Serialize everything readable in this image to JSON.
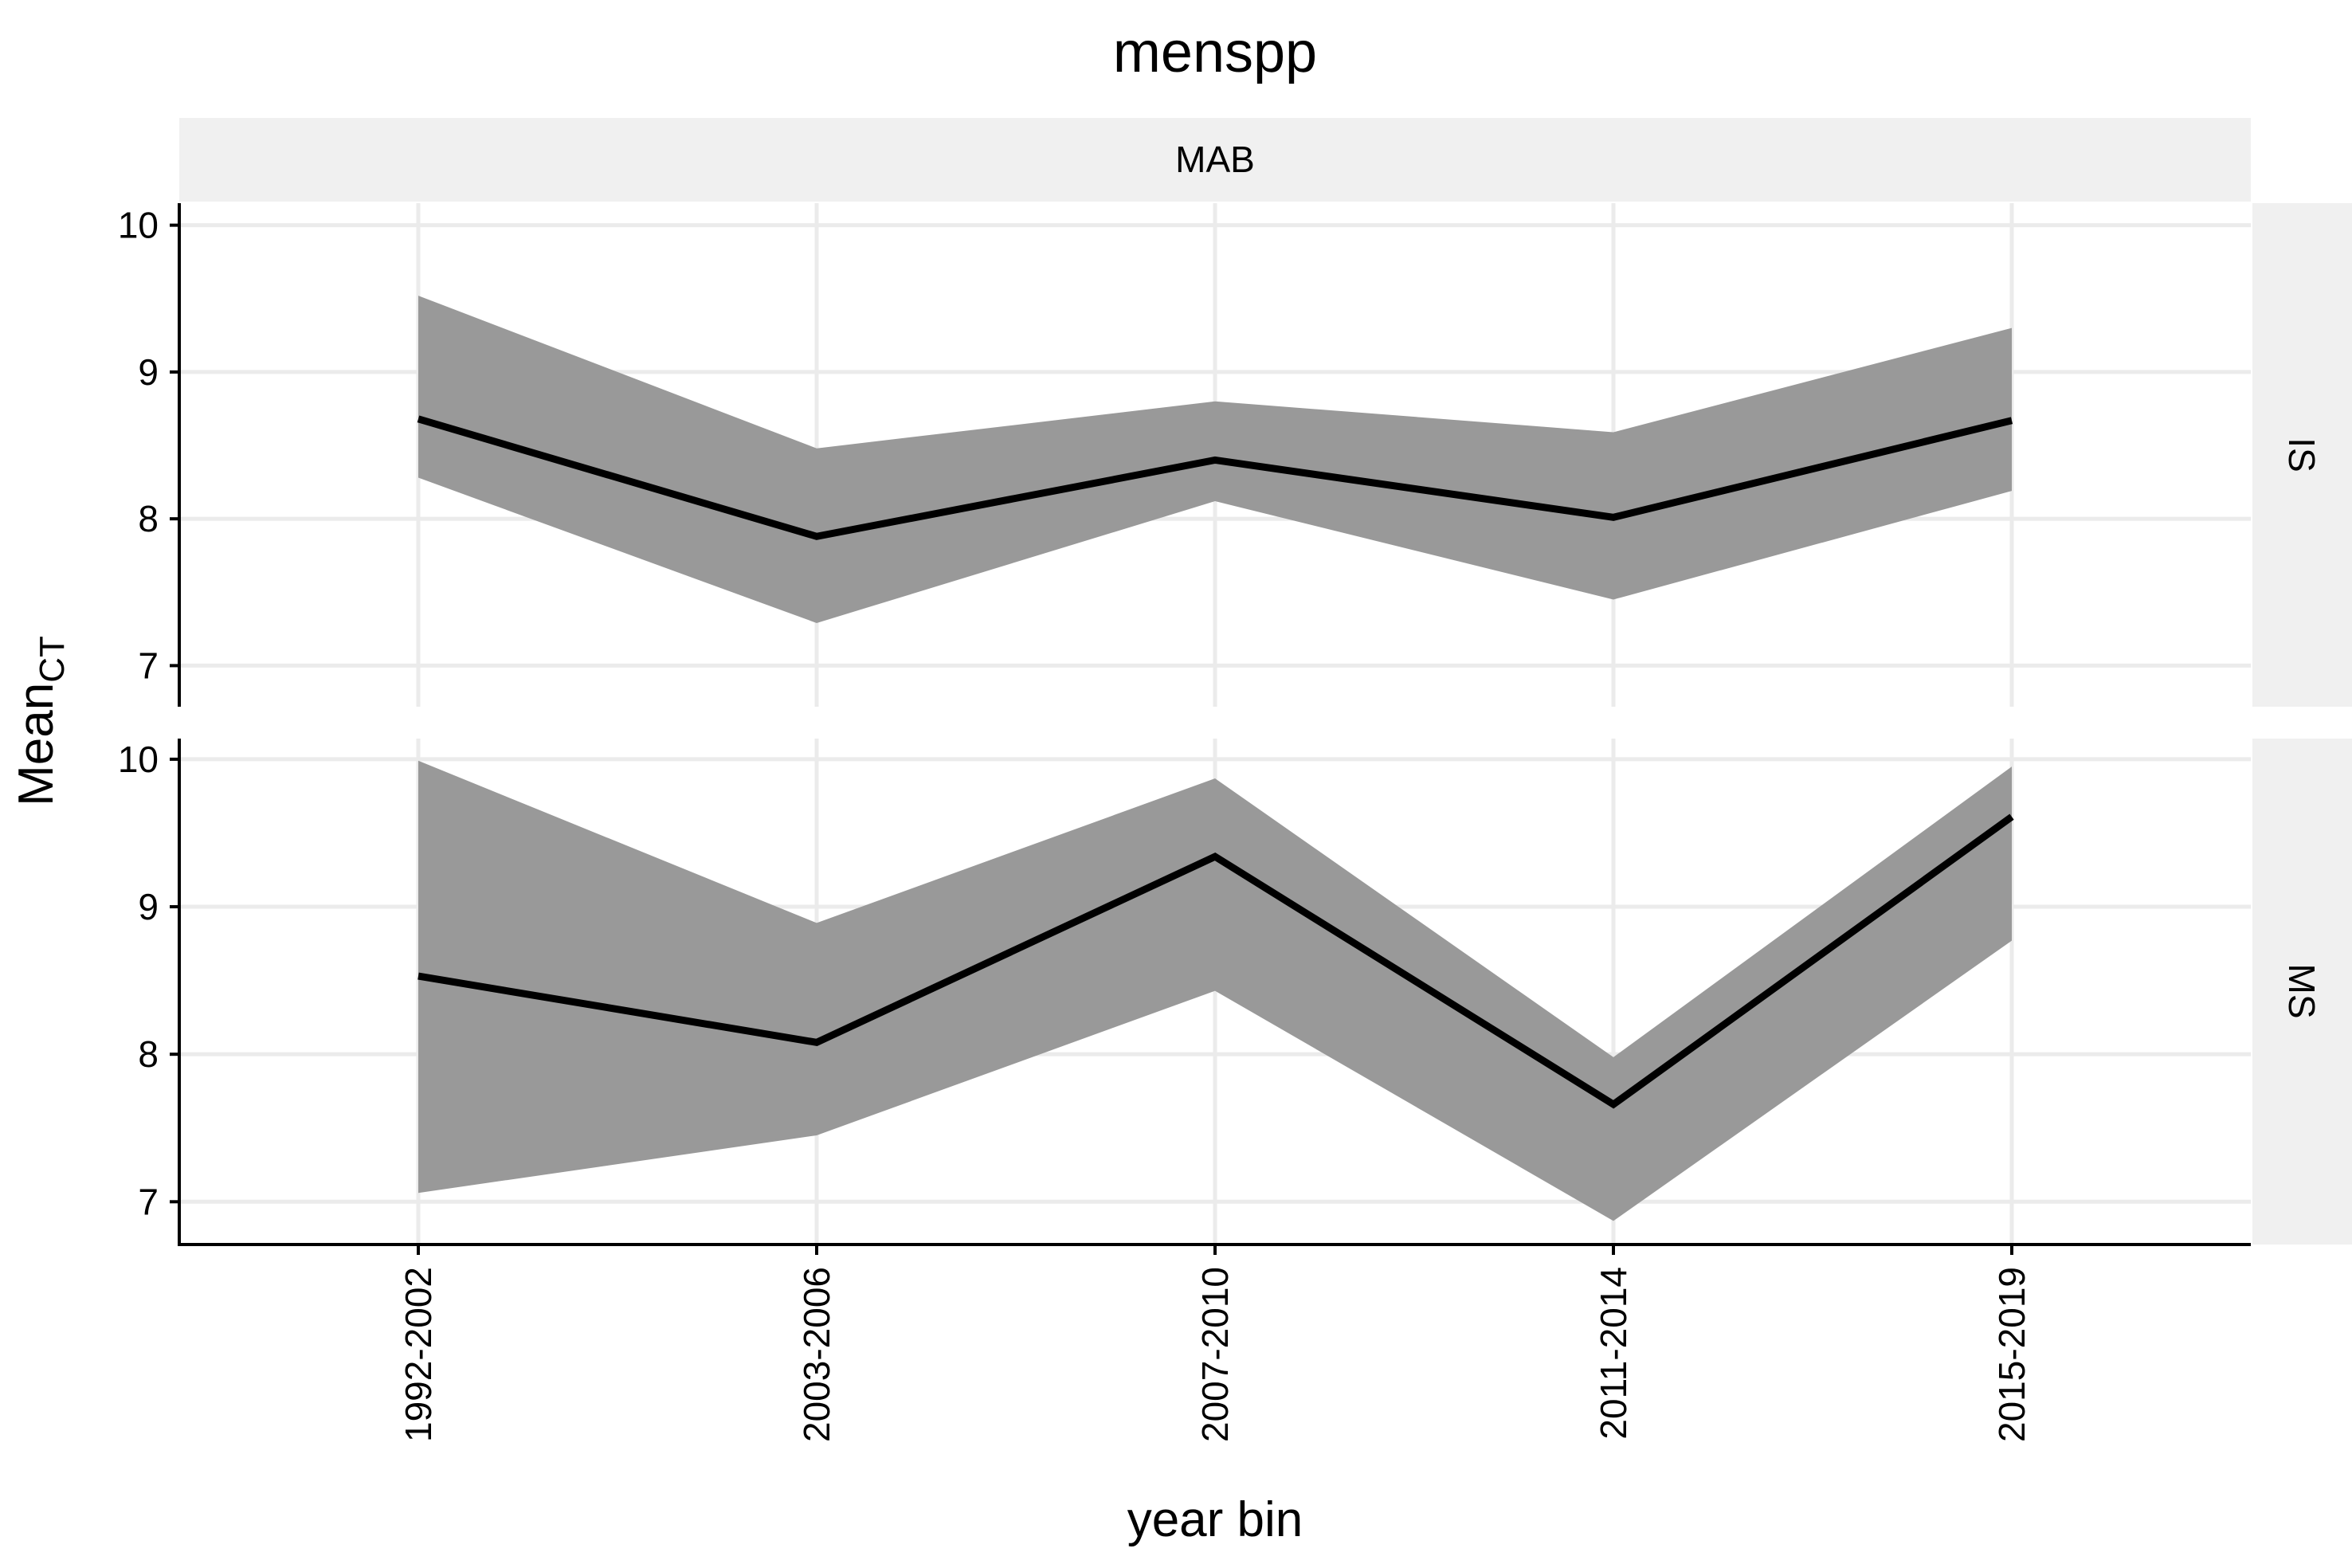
{
  "chart_data": {
    "type": "line",
    "title": "menspp",
    "xlabel": "year bin",
    "ylabel": "Mean",
    "ylabel_subscript": "CT",
    "column_strip": "MAB",
    "categories": [
      "1992-2002",
      "2003-2006",
      "2007-2010",
      "2011-2014",
      "2015-2019"
    ],
    "yticks": [
      7,
      8,
      9,
      10
    ],
    "grid": true,
    "ribbon_color": "#999999",
    "line_color": "#000000",
    "panels": [
      {
        "row_label": "IS",
        "ylim": [
          6.72,
          10.15
        ],
        "series": [
          {
            "values": [
              8.68,
              7.88,
              8.4,
              8.01,
              8.67
            ],
            "lower": [
              8.28,
              7.29,
              8.12,
              7.45,
              8.19
            ],
            "upper": [
              9.52,
              8.48,
              8.8,
              8.59,
              9.3
            ]
          }
        ]
      },
      {
        "row_label": "MS",
        "ylim": [
          6.71,
          10.14
        ],
        "series": [
          {
            "values": [
              8.53,
              8.08,
              9.34,
              7.66,
              9.61
            ],
            "lower": [
              7.06,
              7.45,
              8.43,
              6.87,
              8.77
            ],
            "upper": [
              9.99,
              8.89,
              9.87,
              7.98,
              9.95
            ]
          }
        ]
      }
    ]
  }
}
